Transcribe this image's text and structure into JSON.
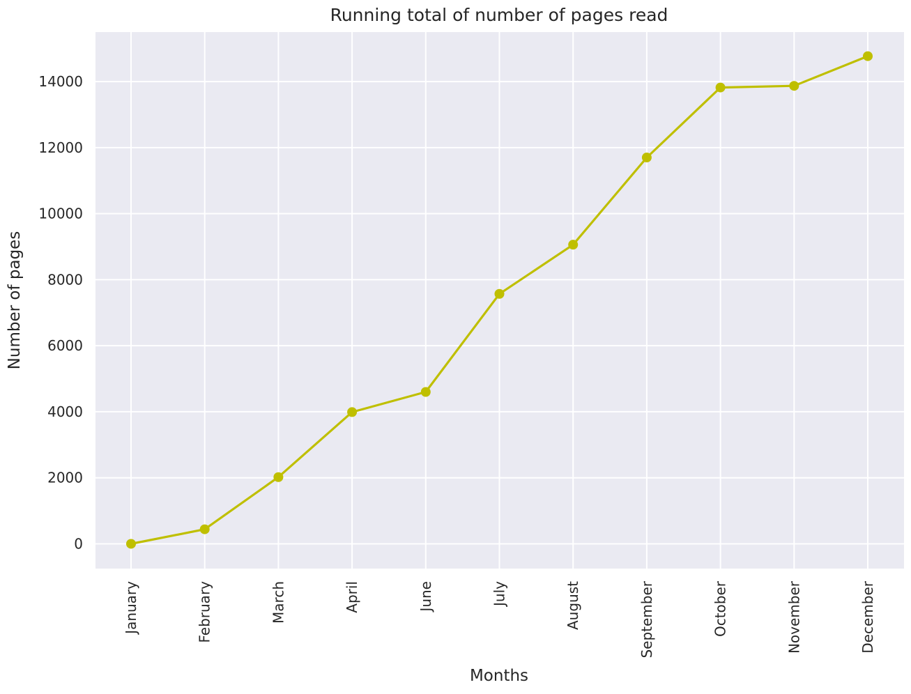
{
  "chart_data": {
    "type": "line",
    "title": "Running total of number of pages read",
    "xlabel": "Months",
    "ylabel": "Number of pages",
    "categories": [
      "January",
      "February",
      "March",
      "April",
      "June",
      "July",
      "August",
      "September",
      "October",
      "November",
      "December"
    ],
    "series": [
      {
        "values": [
          0,
          440,
          2020,
          3990,
          4600,
          7570,
          9060,
          11700,
          13820,
          13870,
          14770
        ]
      }
    ],
    "yticks": [
      0,
      2000,
      4000,
      6000,
      8000,
      10000,
      12000,
      14000
    ],
    "ylim": [
      -750,
      15500
    ],
    "grid": true,
    "legend": "none",
    "colors": {
      "line": "#bfbf00",
      "background": "#eaeaf2",
      "grid": "#ffffff"
    }
  }
}
